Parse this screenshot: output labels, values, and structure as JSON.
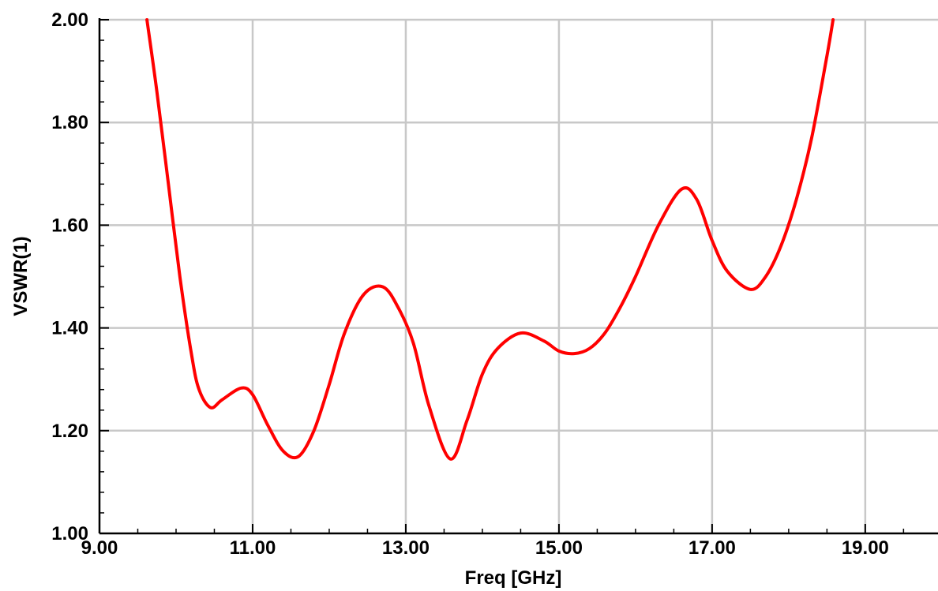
{
  "chart_data": {
    "type": "line",
    "title": "",
    "xlabel": "Freq [GHz]",
    "ylabel": "VSWR(1)",
    "xlim": [
      9.0,
      19.95
    ],
    "ylim": [
      1.0,
      2.0
    ],
    "grid": true,
    "x_ticks": [
      "9.00",
      "11.00",
      "13.00",
      "15.00",
      "17.00",
      "19.00"
    ],
    "y_ticks": [
      "1.00",
      "1.20",
      "1.40",
      "1.60",
      "1.80",
      "2.00"
    ],
    "series": [
      {
        "color": "#ff0000",
        "x": [
          9.62,
          9.75,
          9.9,
          10.05,
          10.2,
          10.3,
          10.45,
          10.6,
          10.85,
          11.0,
          11.2,
          11.4,
          11.6,
          11.8,
          12.0,
          12.2,
          12.45,
          12.7,
          12.9,
          13.1,
          13.3,
          13.58,
          13.8,
          14.0,
          14.2,
          14.5,
          14.8,
          15.0,
          15.2,
          15.4,
          15.6,
          15.8,
          16.0,
          16.3,
          16.6,
          16.8,
          17.0,
          17.2,
          17.5,
          17.7,
          17.9,
          18.1,
          18.3,
          18.5,
          18.58
        ],
        "y": [
          2.0,
          1.86,
          1.68,
          1.5,
          1.35,
          1.28,
          1.245,
          1.26,
          1.283,
          1.27,
          1.21,
          1.16,
          1.15,
          1.2,
          1.29,
          1.39,
          1.465,
          1.48,
          1.44,
          1.37,
          1.25,
          1.145,
          1.22,
          1.31,
          1.36,
          1.39,
          1.375,
          1.355,
          1.35,
          1.36,
          1.39,
          1.44,
          1.5,
          1.6,
          1.67,
          1.65,
          1.57,
          1.51,
          1.475,
          1.5,
          1.56,
          1.65,
          1.77,
          1.93,
          2.0
        ]
      }
    ]
  }
}
